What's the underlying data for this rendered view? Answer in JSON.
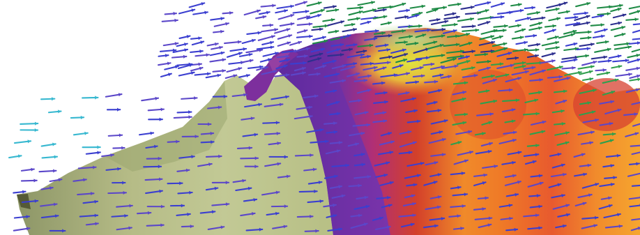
{
  "image": {
    "kind": "3d-flow-field-visualization",
    "background": "#ffffff",
    "surface_palette": {
      "low_terrain": "#a9b27e",
      "low_terrain_highlight": "#c9cf9c",
      "purple_band": "#6a31a8",
      "deep_purple": "#4b1f86",
      "magenta_ridge": "#9b2f86",
      "red_band": "#d3402a",
      "orange_band": "#f08a2a",
      "yellow_peak": "#d7dc39",
      "green_cap": "#a8d27c"
    },
    "vector_colors": [
      "#3b3fd0",
      "#5b47c9",
      "#1f8b46",
      "#2f9f4d",
      "#37b8d0",
      "#2d2f8f"
    ],
    "vector_direction": "left-to-right"
  }
}
